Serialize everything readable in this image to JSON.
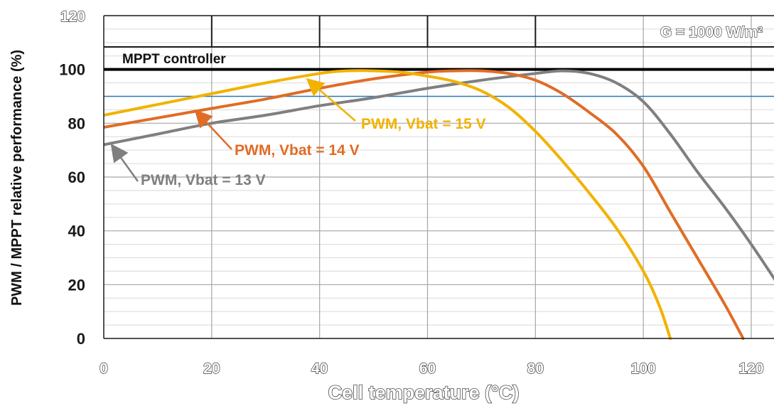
{
  "chart_data": {
    "type": "line",
    "xlabel": "Cell temperature (°C)",
    "ylabel": "PWM / MPPT relative performance (%)",
    "xlim": [
      0,
      125
    ],
    "ylim": [
      0,
      120
    ],
    "x_ticks": [
      0,
      20,
      40,
      60,
      80,
      100,
      120
    ],
    "y_ticks": [
      0,
      20,
      40,
      60,
      80,
      100
    ],
    "y_top_tick": 120,
    "grid": true,
    "condition_label": "G = 1000 W/m²",
    "reference_line": {
      "name": "MPPT controller",
      "y": 100,
      "color": "#000000"
    },
    "threshold_line": {
      "y": 90,
      "color": "#2e75b6"
    },
    "series": [
      {
        "name": "PWM, Vbat = 13 V",
        "color": "#7f7f7f",
        "x": [
          0,
          10,
          20,
          30,
          40,
          50,
          60,
          70,
          80,
          85,
          90,
          95,
          100,
          105,
          110,
          115,
          120,
          125
        ],
        "y": [
          72,
          76,
          80,
          83,
          86.5,
          89.5,
          93,
          96,
          98.5,
          99.5,
          98.5,
          95,
          88,
          76,
          62,
          49,
          35,
          20
        ]
      },
      {
        "name": "PWM, Vbat = 14 V",
        "color": "#e06c25",
        "x": [
          0,
          10,
          20,
          30,
          40,
          50,
          60,
          65,
          70,
          75,
          80,
          85,
          90,
          95,
          100,
          105,
          110,
          115,
          118.5
        ],
        "y": [
          78.5,
          82,
          85.5,
          89,
          93,
          96.5,
          99,
          99.5,
          99.5,
          98.5,
          96,
          91,
          84,
          76,
          64,
          47,
          30,
          13,
          0
        ]
      },
      {
        "name": "PWM, Vbat = 15 V",
        "color": "#f2b200",
        "x": [
          0,
          10,
          20,
          30,
          40,
          45,
          50,
          55,
          60,
          65,
          70,
          75,
          80,
          85,
          90,
          95,
          100,
          103,
          105
        ],
        "y": [
          83,
          87,
          91,
          95,
          98.5,
          99.5,
          99.5,
          99,
          97.5,
          95.5,
          92,
          86,
          77,
          66,
          54,
          41,
          25,
          12,
          0
        ]
      }
    ],
    "annotations": [
      {
        "text": "MPPT controller",
        "target_series": "MPPT controller"
      },
      {
        "text": "PWM, Vbat = 15 V",
        "target_series": "PWM, Vbat = 15 V",
        "color": "#f2b200"
      },
      {
        "text": "PWM, Vbat = 14 V",
        "target_series": "PWM, Vbat = 14 V",
        "color": "#e06c25"
      },
      {
        "text": "PWM, Vbat = 13 V",
        "target_series": "PWM, Vbat = 13 V",
        "color": "#7f7f7f"
      }
    ]
  }
}
